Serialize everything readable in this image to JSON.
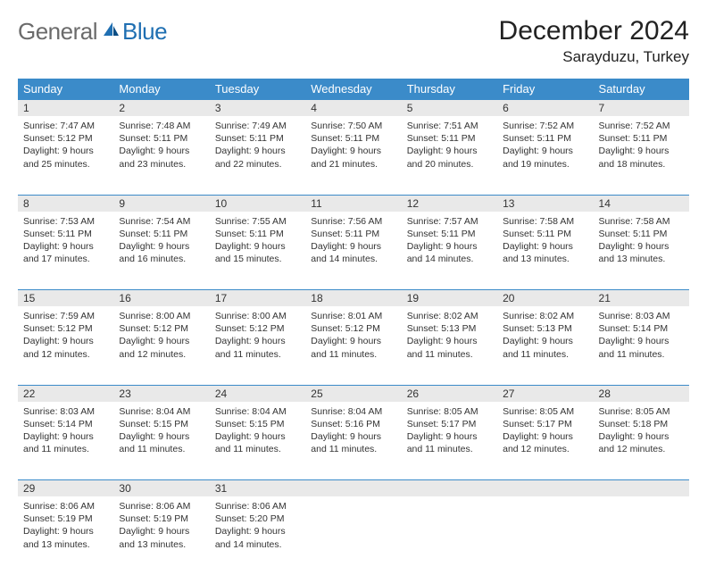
{
  "logo": {
    "general": "General",
    "blue": "Blue"
  },
  "title": "December 2024",
  "location": "Sarayduzu, Turkey",
  "colors": {
    "header_bg": "#3b8bc9",
    "header_fg": "#ffffff",
    "daynum_bg": "#e9e9e9",
    "rule": "#3b8bc9",
    "logo_gray": "#6b6b6b",
    "logo_blue": "#1f6fb2"
  },
  "day_headers": [
    "Sunday",
    "Monday",
    "Tuesday",
    "Wednesday",
    "Thursday",
    "Friday",
    "Saturday"
  ],
  "weeks": [
    [
      {
        "n": "1",
        "sr": "7:47 AM",
        "ss": "5:12 PM",
        "dl": "9 hours and 25 minutes."
      },
      {
        "n": "2",
        "sr": "7:48 AM",
        "ss": "5:11 PM",
        "dl": "9 hours and 23 minutes."
      },
      {
        "n": "3",
        "sr": "7:49 AM",
        "ss": "5:11 PM",
        "dl": "9 hours and 22 minutes."
      },
      {
        "n": "4",
        "sr": "7:50 AM",
        "ss": "5:11 PM",
        "dl": "9 hours and 21 minutes."
      },
      {
        "n": "5",
        "sr": "7:51 AM",
        "ss": "5:11 PM",
        "dl": "9 hours and 20 minutes."
      },
      {
        "n": "6",
        "sr": "7:52 AM",
        "ss": "5:11 PM",
        "dl": "9 hours and 19 minutes."
      },
      {
        "n": "7",
        "sr": "7:52 AM",
        "ss": "5:11 PM",
        "dl": "9 hours and 18 minutes."
      }
    ],
    [
      {
        "n": "8",
        "sr": "7:53 AM",
        "ss": "5:11 PM",
        "dl": "9 hours and 17 minutes."
      },
      {
        "n": "9",
        "sr": "7:54 AM",
        "ss": "5:11 PM",
        "dl": "9 hours and 16 minutes."
      },
      {
        "n": "10",
        "sr": "7:55 AM",
        "ss": "5:11 PM",
        "dl": "9 hours and 15 minutes."
      },
      {
        "n": "11",
        "sr": "7:56 AM",
        "ss": "5:11 PM",
        "dl": "9 hours and 14 minutes."
      },
      {
        "n": "12",
        "sr": "7:57 AM",
        "ss": "5:11 PM",
        "dl": "9 hours and 14 minutes."
      },
      {
        "n": "13",
        "sr": "7:58 AM",
        "ss": "5:11 PM",
        "dl": "9 hours and 13 minutes."
      },
      {
        "n": "14",
        "sr": "7:58 AM",
        "ss": "5:11 PM",
        "dl": "9 hours and 13 minutes."
      }
    ],
    [
      {
        "n": "15",
        "sr": "7:59 AM",
        "ss": "5:12 PM",
        "dl": "9 hours and 12 minutes."
      },
      {
        "n": "16",
        "sr": "8:00 AM",
        "ss": "5:12 PM",
        "dl": "9 hours and 12 minutes."
      },
      {
        "n": "17",
        "sr": "8:00 AM",
        "ss": "5:12 PM",
        "dl": "9 hours and 11 minutes."
      },
      {
        "n": "18",
        "sr": "8:01 AM",
        "ss": "5:12 PM",
        "dl": "9 hours and 11 minutes."
      },
      {
        "n": "19",
        "sr": "8:02 AM",
        "ss": "5:13 PM",
        "dl": "9 hours and 11 minutes."
      },
      {
        "n": "20",
        "sr": "8:02 AM",
        "ss": "5:13 PM",
        "dl": "9 hours and 11 minutes."
      },
      {
        "n": "21",
        "sr": "8:03 AM",
        "ss": "5:14 PM",
        "dl": "9 hours and 11 minutes."
      }
    ],
    [
      {
        "n": "22",
        "sr": "8:03 AM",
        "ss": "5:14 PM",
        "dl": "9 hours and 11 minutes."
      },
      {
        "n": "23",
        "sr": "8:04 AM",
        "ss": "5:15 PM",
        "dl": "9 hours and 11 minutes."
      },
      {
        "n": "24",
        "sr": "8:04 AM",
        "ss": "5:15 PM",
        "dl": "9 hours and 11 minutes."
      },
      {
        "n": "25",
        "sr": "8:04 AM",
        "ss": "5:16 PM",
        "dl": "9 hours and 11 minutes."
      },
      {
        "n": "26",
        "sr": "8:05 AM",
        "ss": "5:17 PM",
        "dl": "9 hours and 11 minutes."
      },
      {
        "n": "27",
        "sr": "8:05 AM",
        "ss": "5:17 PM",
        "dl": "9 hours and 12 minutes."
      },
      {
        "n": "28",
        "sr": "8:05 AM",
        "ss": "5:18 PM",
        "dl": "9 hours and 12 minutes."
      }
    ],
    [
      {
        "n": "29",
        "sr": "8:06 AM",
        "ss": "5:19 PM",
        "dl": "9 hours and 13 minutes."
      },
      {
        "n": "30",
        "sr": "8:06 AM",
        "ss": "5:19 PM",
        "dl": "9 hours and 13 minutes."
      },
      {
        "n": "31",
        "sr": "8:06 AM",
        "ss": "5:20 PM",
        "dl": "9 hours and 14 minutes."
      },
      null,
      null,
      null,
      null
    ]
  ],
  "labels": {
    "sunrise": "Sunrise:",
    "sunset": "Sunset:",
    "daylight": "Daylight:"
  }
}
